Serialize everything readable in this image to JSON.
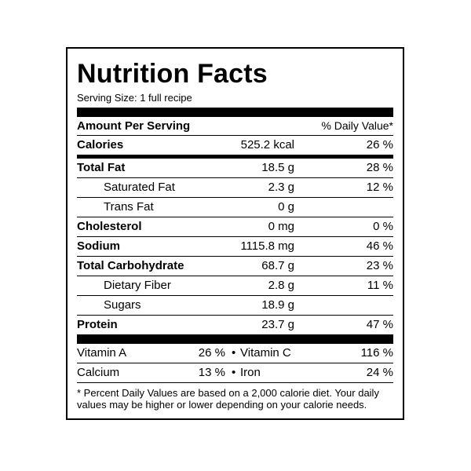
{
  "title": "Nutrition Facts",
  "serving_size": "Serving Size: 1 full recipe",
  "amount_per_serving": "Amount Per Serving",
  "daily_value_header": "% Daily Value*",
  "calories": {
    "name": "Calories",
    "amount": "525.2 kcal",
    "dv": "26 %"
  },
  "nutrients": [
    {
      "name": "Total Fat",
      "amount": "18.5 g",
      "dv": "28 %"
    },
    {
      "name": "Saturated Fat",
      "amount": "2.3 g",
      "dv": "12 %"
    },
    {
      "name": "Trans Fat",
      "amount": "0 g",
      "dv": ""
    },
    {
      "name": "Cholesterol",
      "amount": "0 mg",
      "dv": "0 %"
    },
    {
      "name": "Sodium",
      "amount": "1115.8 mg",
      "dv": "46 %"
    },
    {
      "name": "Total Carbohydrate",
      "amount": "68.7 g",
      "dv": "23 %"
    },
    {
      "name": "Dietary Fiber",
      "amount": "2.8 g",
      "dv": "11 %"
    },
    {
      "name": "Sugars",
      "amount": "18.9 g",
      "dv": ""
    },
    {
      "name": "Protein",
      "amount": "23.7 g",
      "dv": "47 %"
    }
  ],
  "vitamins": [
    {
      "name1": "Vitamin A",
      "val1": "26 %",
      "sep": "•",
      "name2": "Vitamin C",
      "val2": "116 %"
    },
    {
      "name1": "Calcium",
      "val1": "13 %",
      "sep": "•",
      "name2": "Iron",
      "val2": "24 %"
    }
  ],
  "footnote": "* Percent Daily Values are based on a 2,000 calorie diet. Your daily values may be higher or lower depending on your calorie needs."
}
